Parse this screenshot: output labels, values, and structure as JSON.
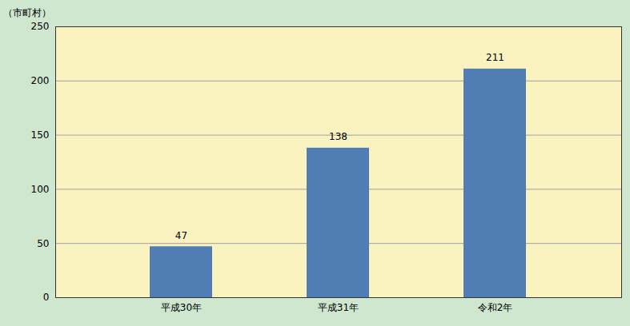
{
  "chart_data": {
    "type": "bar",
    "y_label": "（市町村）",
    "categories": [
      "平成30年",
      "平成31年",
      "令和2年"
    ],
    "values": [
      47,
      138,
      211
    ],
    "color": "#517db5",
    "ylim": [
      0,
      250
    ],
    "yticks": [
      0,
      50,
      100,
      150,
      200,
      250
    ],
    "grid": true,
    "data_labels": true
  }
}
